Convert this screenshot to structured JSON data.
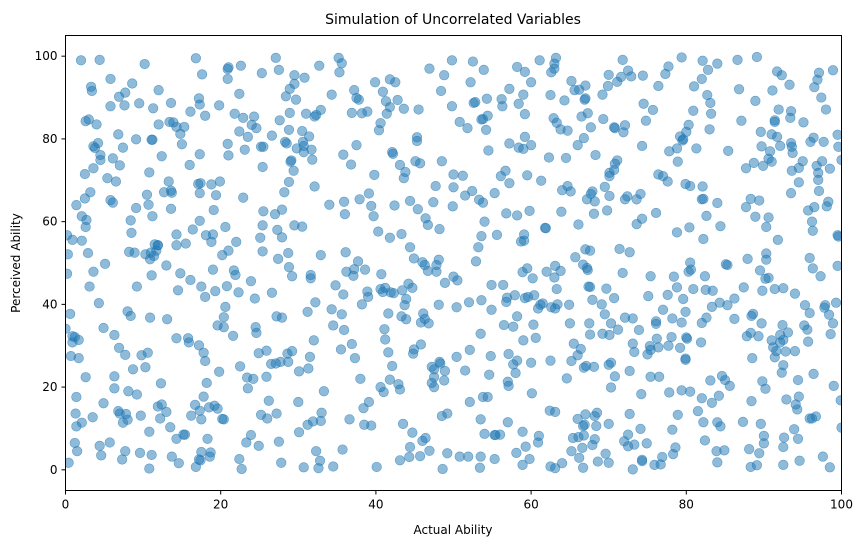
{
  "chart_data": {
    "type": "scatter",
    "title": "Simulation of Uncorrelated Variables",
    "xlabel": "Actual Ability",
    "ylabel": "Perceived Ability",
    "xlim": [
      0,
      100
    ],
    "ylim": [
      -5,
      105
    ],
    "xticks": [
      0,
      20,
      40,
      60,
      80,
      100
    ],
    "yticks": [
      0,
      20,
      40,
      60,
      80,
      100
    ],
    "grid": false,
    "point_color": "#1f77b4",
    "point_alpha": 0.5,
    "n_points": 1000,
    "points": [
      [
        0,
        34.1
      ],
      [
        0.2,
        56.7
      ],
      [
        0.7,
        27.5
      ],
      [
        2.0,
        99.0
      ],
      [
        2.5,
        71.5
      ],
      [
        3.1,
        44.3
      ],
      [
        3.5,
        12.7
      ],
      [
        4.0,
        83.5
      ],
      [
        4.6,
        3.5
      ],
      [
        5.1,
        49.8
      ],
      [
        5.8,
        65.2
      ],
      [
        6.3,
        19.7
      ],
      [
        6.9,
        90.2
      ],
      [
        7.4,
        11.4
      ],
      [
        8.0,
        38.3
      ],
      [
        8.4,
        60.3
      ],
      [
        9.1,
        79.9
      ],
      [
        9.6,
        4.1
      ],
      [
        10.3,
        24.8
      ],
      [
        10.8,
        71.9
      ],
      [
        11.4,
        51.7
      ],
      [
        12.0,
        91.8
      ],
      [
        12.4,
        15.8
      ],
      [
        13.1,
        36.4
      ],
      [
        13.6,
        63.1
      ],
      [
        14.3,
        7.5
      ],
      [
        14.8,
        47.5
      ],
      [
        15.3,
        82.9
      ],
      [
        15.9,
        30.8
      ],
      [
        16.4,
        58.1
      ],
      [
        17.2,
        2.5
      ],
      [
        17.6,
        95.6
      ],
      [
        18.2,
        21.0
      ],
      [
        18.8,
        69.0
      ],
      [
        19.3,
        43.2
      ],
      [
        19.8,
        88.1
      ],
      [
        20.4,
        12.2
      ],
      [
        21.0,
        76.0
      ],
      [
        21.6,
        32.4
      ],
      [
        22.0,
        55.1
      ],
      [
        22.6,
        97.7
      ],
      [
        23.3,
        6.6
      ],
      [
        23.9,
        45.6
      ],
      [
        24.3,
        85.4
      ],
      [
        24.9,
        28.2
      ],
      [
        25.5,
        62.5
      ],
      [
        26.2,
        16.7
      ],
      [
        26.6,
        80.8
      ],
      [
        27.2,
        37.1
      ],
      [
        27.8,
        1.7
      ],
      [
        28.2,
        67.1
      ],
      [
        28.8,
        49.0
      ],
      [
        29.5,
        93.3
      ],
      [
        30.1,
        23.8
      ],
      [
        30.5,
        58.8
      ],
      [
        31.2,
        10.9
      ],
      [
        31.7,
        77.4
      ],
      [
        32.2,
        40.5
      ],
      [
        32.9,
        87.0
      ],
      [
        33.3,
        19.0
      ],
      [
        34.0,
        64.1
      ],
      [
        34.5,
        34.9
      ],
      [
        35.2,
        99.6
      ],
      [
        35.7,
        4.9
      ],
      [
        36.1,
        52.6
      ],
      [
        36.8,
        73.8
      ],
      [
        37.3,
        27.0
      ],
      [
        37.8,
        89.5
      ],
      [
        38.4,
        14.9
      ],
      [
        39.0,
        41.8
      ],
      [
        39.7,
        61.3
      ],
      [
        40.1,
        0.7
      ],
      [
        40.6,
        83.8
      ],
      [
        41.2,
        31.5
      ],
      [
        41.8,
        56.1
      ],
      [
        42.5,
        93.7
      ],
      [
        42.9,
        20.7
      ],
      [
        43.6,
        70.5
      ],
      [
        44.2,
        45.0
      ],
      [
        44.7,
        9.0
      ],
      [
        45.3,
        79.5
      ],
      [
        45.8,
        35.6
      ],
      [
        46.4,
        60.8
      ],
      [
        46.9,
        97.0
      ],
      [
        47.5,
        24.3
      ],
      [
        48.1,
        50.8
      ],
      [
        48.5,
        74.6
      ],
      [
        49.2,
        13.6
      ],
      [
        49.8,
        87.9
      ],
      [
        50.4,
        39.3
      ],
      [
        50.8,
        3.2
      ],
      [
        51.5,
        66.3
      ],
      [
        52.1,
        29.0
      ],
      [
        52.5,
        98.7
      ],
      [
        53.2,
        53.8
      ],
      [
        53.8,
        17.6
      ],
      [
        54.2,
        82.2
      ],
      [
        54.9,
        44.7
      ],
      [
        55.4,
        8.4
      ],
      [
        56.1,
        71.0
      ],
      [
        56.5,
        35.0
      ],
      [
        57.2,
        92.1
      ],
      [
        57.7,
        25.5
      ],
      [
        58.2,
        61.5
      ],
      [
        58.9,
        47.8
      ],
      [
        59.3,
        5.6
      ],
      [
        60.0,
        78.5
      ],
      [
        60.6,
        31.9
      ],
      [
        61.1,
        99.0
      ],
      [
        61.8,
        58.5
      ],
      [
        62.4,
        14.3
      ],
      [
        62.9,
        85.0
      ],
      [
        63.4,
        40.0
      ],
      [
        64.0,
        67.6
      ],
      [
        64.6,
        22.1
      ],
      [
        65.2,
        94.0
      ],
      [
        65.7,
        51.4
      ],
      [
        66.2,
        2.9
      ],
      [
        66.8,
        80.2
      ],
      [
        67.5,
        35.4
      ],
      [
        68.1,
        61.9
      ],
      [
        68.5,
        13.8
      ],
      [
        69.2,
        90.7
      ],
      [
        69.7,
        43.8
      ],
      [
        70.3,
        25.9
      ],
      [
        70.8,
        74.0
      ],
      [
        71.4,
        53.4
      ],
      [
        72.0,
        6.9
      ],
      [
        72.5,
        96.5
      ],
      [
        73.1,
        30.5
      ],
      [
        73.6,
        65.4
      ],
      [
        74.2,
        18.3
      ],
      [
        74.8,
        84.4
      ],
      [
        75.4,
        46.8
      ],
      [
        75.9,
        1.2
      ],
      [
        76.4,
        71.4
      ],
      [
        77.0,
        38.7
      ],
      [
        77.7,
        97.5
      ],
      [
        78.2,
        9.7
      ],
      [
        78.8,
        57.4
      ],
      [
        79.2,
        80.6
      ],
      [
        79.9,
        26.6
      ],
      [
        80.5,
        50.1
      ],
      [
        81.0,
        92.7
      ],
      [
        81.5,
        14.2
      ],
      [
        82.1,
        68.5
      ],
      [
        82.6,
        36.8
      ],
      [
        83.2,
        86.1
      ],
      [
        83.9,
        4.5
      ],
      [
        84.4,
        58.9
      ],
      [
        85.0,
        21.7
      ],
      [
        85.4,
        77.1
      ],
      [
        86.2,
        41.4
      ],
      [
        86.6,
        99.1
      ],
      [
        87.3,
        11.6
      ],
      [
        87.7,
        63.5
      ],
      [
        88.3,
        33.1
      ],
      [
        88.9,
        89.2
      ],
      [
        89.5,
        48.2
      ],
      [
        90.0,
        6.4
      ],
      [
        90.6,
        75.2
      ],
      [
        91.2,
        29.6
      ],
      [
        91.8,
        55.6
      ],
      [
        92.3,
        95.4
      ],
      [
        92.9,
        17.0
      ],
      [
        93.5,
        66.9
      ],
      [
        94.0,
        42.6
      ],
      [
        94.6,
        2.2
      ],
      [
        95.1,
        84.0
      ],
      [
        95.7,
        31.0
      ],
      [
        96.2,
        60.0
      ],
      [
        96.7,
        12.9
      ],
      [
        97.4,
        90.0
      ],
      [
        97.9,
        39.8
      ],
      [
        98.5,
        72.8
      ],
      [
        99.0,
        20.3
      ],
      [
        99.6,
        56.4
      ],
      [
        100,
        10.2
      ],
      [
        100,
        74.9
      ]
    ]
  }
}
